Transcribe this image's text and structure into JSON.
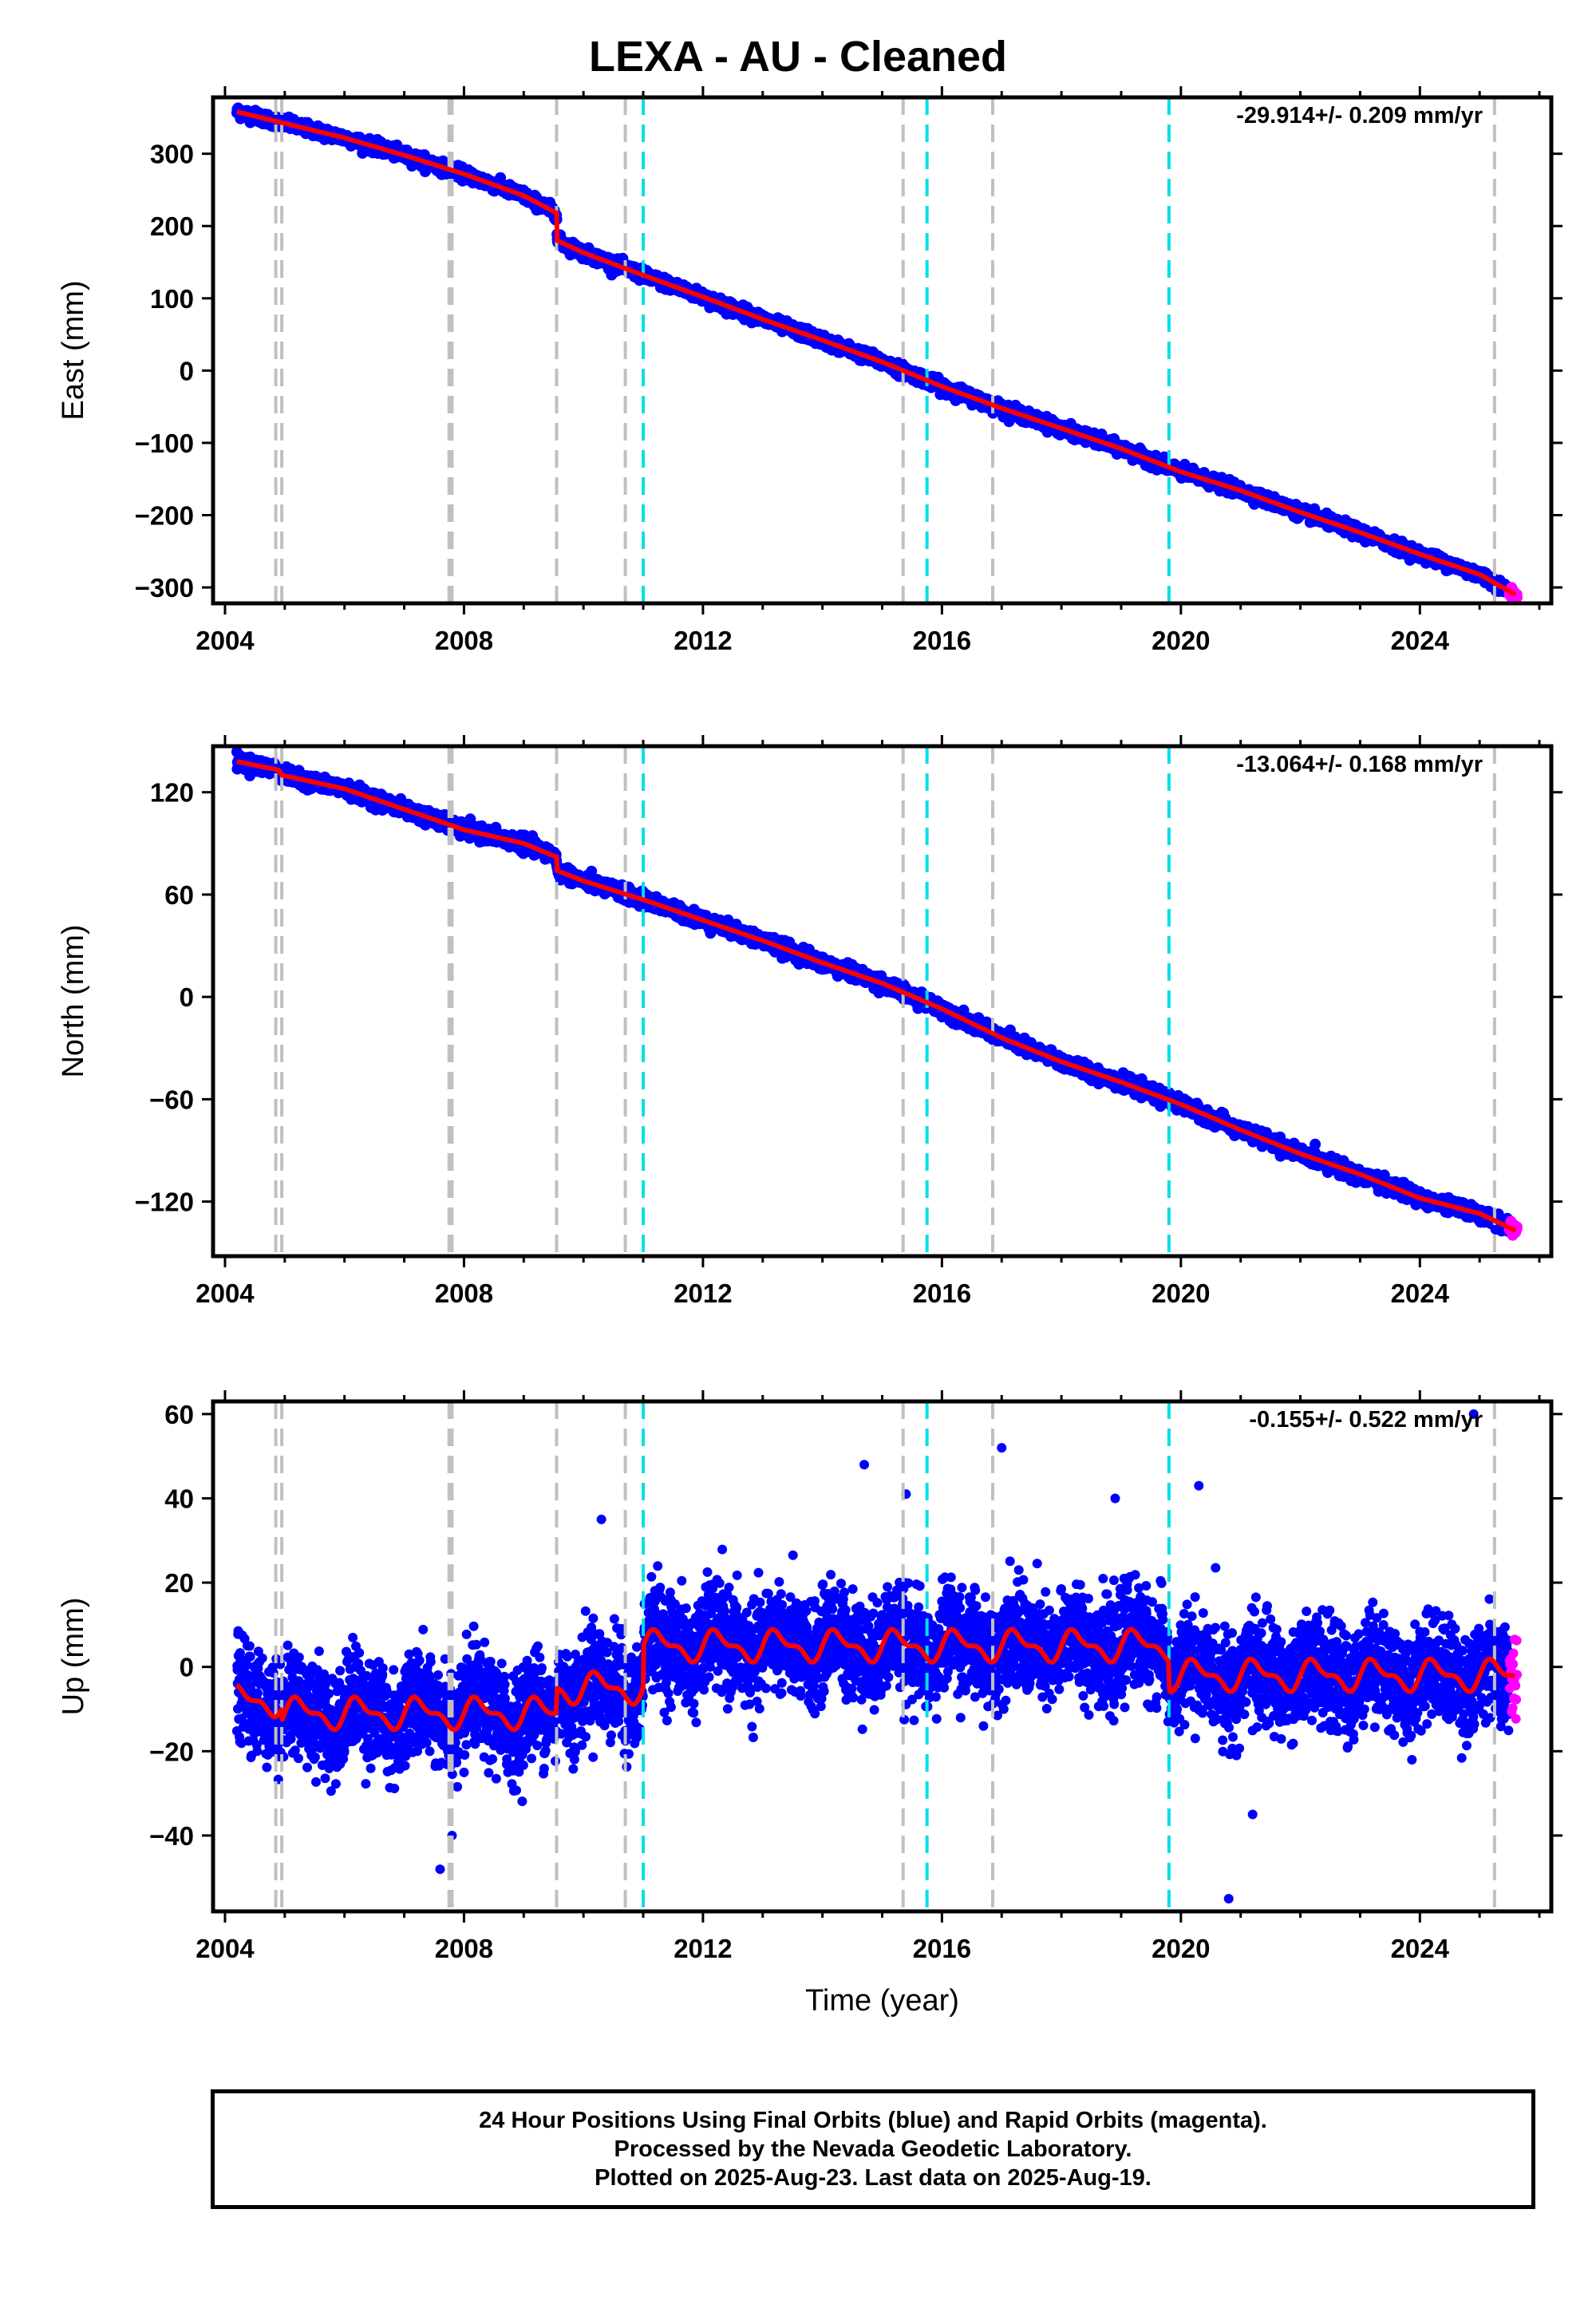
{
  "title": "LEXA  - AU - Cleaned",
  "colors": {
    "final_orbits": "#0000ff",
    "rapid_orbits": "#ff00ff",
    "model_line": "#ff0000",
    "equipment_change": "#c0c0c0",
    "earthquake": "#00e0e8"
  },
  "events": {
    "gray_years": [
      2004.85,
      2004.95,
      2007.75,
      2007.8,
      2009.55,
      2010.7,
      2015.35,
      2016.85,
      2025.25
    ],
    "cyan_years": [
      2011.0,
      2015.75,
      2019.8
    ]
  },
  "chart_data": [
    {
      "type": "scatter",
      "panel": "east",
      "ylabel": "East (mm)",
      "rate": "-29.914+/- 0.209 mm/yr",
      "xlim": [
        2003.8,
        2026.2
      ],
      "ylim": [
        -322,
        378
      ],
      "xticks": [
        "2004",
        "2008",
        "2012",
        "2016",
        "2020",
        "2024"
      ],
      "yticks": [
        "300",
        "200",
        "100",
        "0",
        "−100",
        "−200",
        "−300"
      ],
      "ytick_values": [
        300,
        200,
        100,
        0,
        -100,
        -200,
        -300
      ],
      "model": {
        "x": [
          2004.2,
          2005.0,
          2006.0,
          2007.0,
          2008.0,
          2009.0,
          2009.55,
          2009.56,
          2010.0,
          2011.0,
          2012.0,
          2013.0,
          2014.0,
          2015.0,
          2016.0,
          2017.0,
          2018.0,
          2019.0,
          2020.0,
          2021.0,
          2022.0,
          2023.0,
          2024.0,
          2025.0,
          2025.6
        ],
        "y": [
          358,
          342,
          322,
          298,
          272,
          242,
          218,
          180,
          163,
          132,
          102,
          71,
          42,
          12,
          -22,
          -52,
          -80,
          -108,
          -140,
          -166,
          -196,
          -224,
          -254,
          -282,
          -310
        ]
      },
      "scatter_model": "linear with offset",
      "noise_mm": 4
    },
    {
      "type": "scatter",
      "panel": "north",
      "ylabel": "North (mm)",
      "rate": "-13.064+/- 0.168 mm/yr",
      "xlim": [
        2003.8,
        2026.2
      ],
      "ylim": [
        -152,
        147
      ],
      "xticks": [
        "2004",
        "2008",
        "2012",
        "2016",
        "2020",
        "2024"
      ],
      "yticks": [
        "120",
        "60",
        "0",
        "−60",
        "−120"
      ],
      "ytick_values": [
        120,
        60,
        0,
        -60,
        -120
      ],
      "model": {
        "x": [
          2004.2,
          2004.9,
          2004.95,
          2006.0,
          2007.0,
          2008.0,
          2009.0,
          2009.55,
          2009.56,
          2010.0,
          2011.0,
          2012.0,
          2013.0,
          2014.0,
          2015.0,
          2016.0,
          2017.0,
          2018.0,
          2019.0,
          2020.0,
          2021.0,
          2022.0,
          2023.0,
          2024.0,
          2025.0,
          2025.6
        ],
        "y": [
          138,
          133,
          130,
          122,
          110,
          98,
          90,
          82,
          74,
          68,
          57,
          45,
          33,
          20,
          8,
          -7,
          -24,
          -38,
          -50,
          -63,
          -78,
          -92,
          -104,
          -118,
          -127,
          -137
        ]
      },
      "noise_mm": 2
    },
    {
      "type": "scatter",
      "panel": "up",
      "ylabel": "Up (mm)",
      "xlabel": "Time (year)",
      "rate": "-0.155+/- 0.522 mm/yr",
      "xlim": [
        2003.8,
        2026.2
      ],
      "ylim": [
        -58,
        63
      ],
      "xticks": [
        "2004",
        "2008",
        "2012",
        "2016",
        "2020",
        "2024"
      ],
      "yticks": [
        "60",
        "40",
        "20",
        "0",
        "−20",
        "−40"
      ],
      "ytick_values": [
        60,
        40,
        20,
        0,
        -20,
        -40
      ],
      "model_segments": [
        {
          "x0": 2004.2,
          "x1": 2004.95,
          "base": -8
        },
        {
          "x0": 2004.96,
          "x1": 2009.55,
          "base": -11
        },
        {
          "x0": 2009.56,
          "x1": 2011.0,
          "base": -5
        },
        {
          "x0": 2011.01,
          "x1": 2019.8,
          "base": 5
        },
        {
          "x0": 2019.81,
          "x1": 2025.6,
          "base": -2
        }
      ],
      "seasonal_amplitude_mm": 3,
      "noise_mm": 6,
      "outliers": [
        {
          "x": 2024.9,
          "y": 60
        },
        {
          "x": 2017.0,
          "y": 52
        },
        {
          "x": 2014.7,
          "y": 48
        },
        {
          "x": 2020.3,
          "y": 43
        },
        {
          "x": 2015.4,
          "y": 41
        },
        {
          "x": 2018.9,
          "y": 40
        },
        {
          "x": 2010.3,
          "y": 35
        },
        {
          "x": 2007.6,
          "y": -48
        },
        {
          "x": 2007.8,
          "y": -40
        },
        {
          "x": 2021.2,
          "y": -35
        },
        {
          "x": 2020.8,
          "y": -55
        }
      ]
    }
  ],
  "footer": {
    "line1": "24 Hour Positions Using Final Orbits (blue) and Rapid Orbits (magenta).",
    "line2": "Processed by the Nevada Geodetic Laboratory.",
    "line3": "Plotted on 2025-Aug-23. Last data on 2025-Aug-19."
  }
}
